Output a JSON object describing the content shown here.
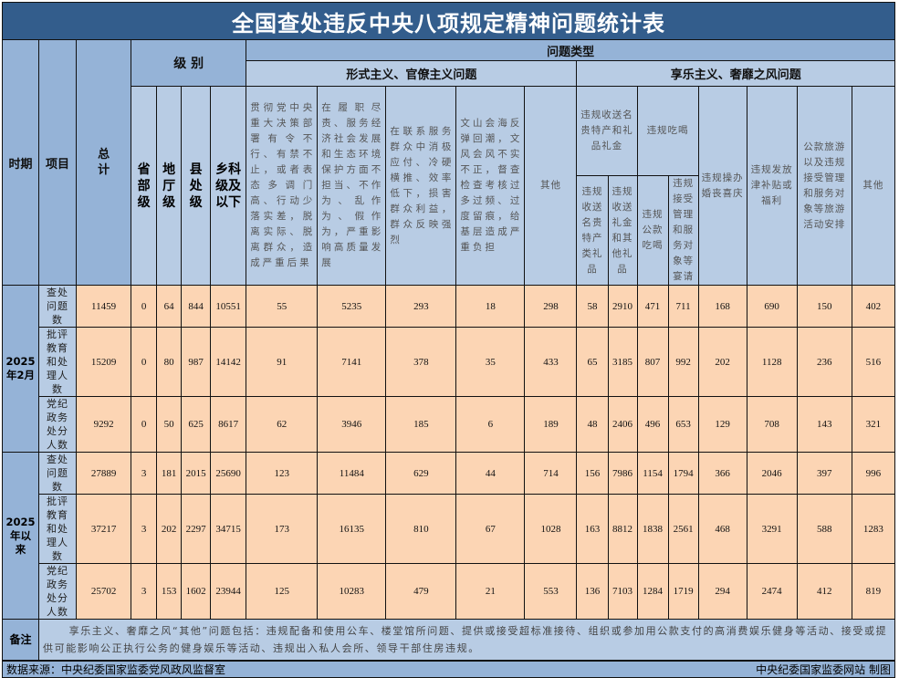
{
  "title": "全国查处违反中央八项规定精神问题统计表",
  "header": {
    "period": "时期",
    "item": "项目",
    "total": "总计",
    "level": "级 别",
    "levels": [
      "省部级",
      "地厅级",
      "县处级",
      "乡科级及以下"
    ],
    "problem_type": "问题类型",
    "formalism": {
      "label": "形式主义、官僚主义问题",
      "columns": [
        "贯彻党中央重大决策部署有令不行、有禁不止，或者表态多调门高、行动少落实差，脱离实际、脱离群众，造成严重后果",
        "在履职尽责、服务经济社会发展和生态环境保护方面不担当、不作为、乱作为、假作为，严重影响高质量发展",
        "在联系服务群众中消极应付、冷硬横推、效率低下，损害群众利益，群众反映强烈",
        "文山会海反弹回潮，文风会风不实不正，督查检查考核过多过频、过度留痕，给基层造成严重负担",
        "其他"
      ]
    },
    "hedonism": {
      "label": "享乐主义、奢靡之风问题",
      "gifts": {
        "label": "违规收送名贵特产和礼品礼金",
        "columns": [
          "违规收送名贵特产类礼品",
          "违规收送礼金和其他礼品"
        ]
      },
      "dining": {
        "label": "违规吃喝",
        "columns": [
          "违规公款吃喝",
          "违规接受管理和服务对象等宴请"
        ]
      },
      "columns": [
        "违规操办婚丧喜庆",
        "违规发放津补贴或福利",
        "公款旅游以及违规接受管理和服务对象等旅游活动安排",
        "其他"
      ]
    }
  },
  "groups": [
    {
      "period": "2025年2月",
      "rows": [
        {
          "item": "查处问题数",
          "values": [
            "11459",
            "0",
            "64",
            "844",
            "10551",
            "55",
            "5235",
            "293",
            "18",
            "298",
            "58",
            "2910",
            "471",
            "711",
            "168",
            "690",
            "150",
            "402"
          ]
        },
        {
          "item": "批评教育和处理人数",
          "values": [
            "15209",
            "0",
            "80",
            "987",
            "14142",
            "91",
            "7141",
            "378",
            "35",
            "433",
            "65",
            "3185",
            "807",
            "992",
            "202",
            "1128",
            "236",
            "516"
          ]
        },
        {
          "item": "党纪政务处分人数",
          "values": [
            "9292",
            "0",
            "50",
            "625",
            "8617",
            "62",
            "3946",
            "185",
            "6",
            "189",
            "48",
            "2406",
            "496",
            "653",
            "129",
            "708",
            "143",
            "321"
          ]
        }
      ]
    },
    {
      "period": "2025年以来",
      "rows": [
        {
          "item": "查处问题数",
          "values": [
            "27889",
            "3",
            "181",
            "2015",
            "25690",
            "123",
            "11484",
            "629",
            "44",
            "714",
            "156",
            "7986",
            "1154",
            "1794",
            "366",
            "2046",
            "397",
            "996"
          ]
        },
        {
          "item": "批评教育和处理人数",
          "values": [
            "37217",
            "3",
            "202",
            "2297",
            "34715",
            "173",
            "16135",
            "810",
            "67",
            "1028",
            "163",
            "8812",
            "1838",
            "2561",
            "468",
            "3291",
            "588",
            "1283"
          ]
        },
        {
          "item": "党纪政务处分人数",
          "values": [
            "25702",
            "3",
            "153",
            "1602",
            "23944",
            "125",
            "10283",
            "479",
            "21",
            "553",
            "136",
            "7103",
            "1284",
            "1719",
            "294",
            "2474",
            "412",
            "819"
          ]
        }
      ]
    }
  ],
  "note": {
    "label": "备注",
    "text": "享乐主义、奢靡之风“其他”问题包括：违规配备和使用公车、楼堂馆所问题、提供或接受超标准接待、组织或参加用公款支付的高消费娱乐健身等活动、接受或提供可能影响公正执行公务的健身娱乐等活动、违规出入私人会所、领导干部住房违规。"
  },
  "footer": {
    "source": "数据来源：中央纪委国家监委党风政风监督室",
    "credit": "中央纪委国家监委网站 制图"
  },
  "colors": {
    "title_bg": "#335d8c",
    "header_dark": "#95b3d7",
    "header_light": "#b8cce4",
    "data_bg": "#fcd5b4"
  }
}
